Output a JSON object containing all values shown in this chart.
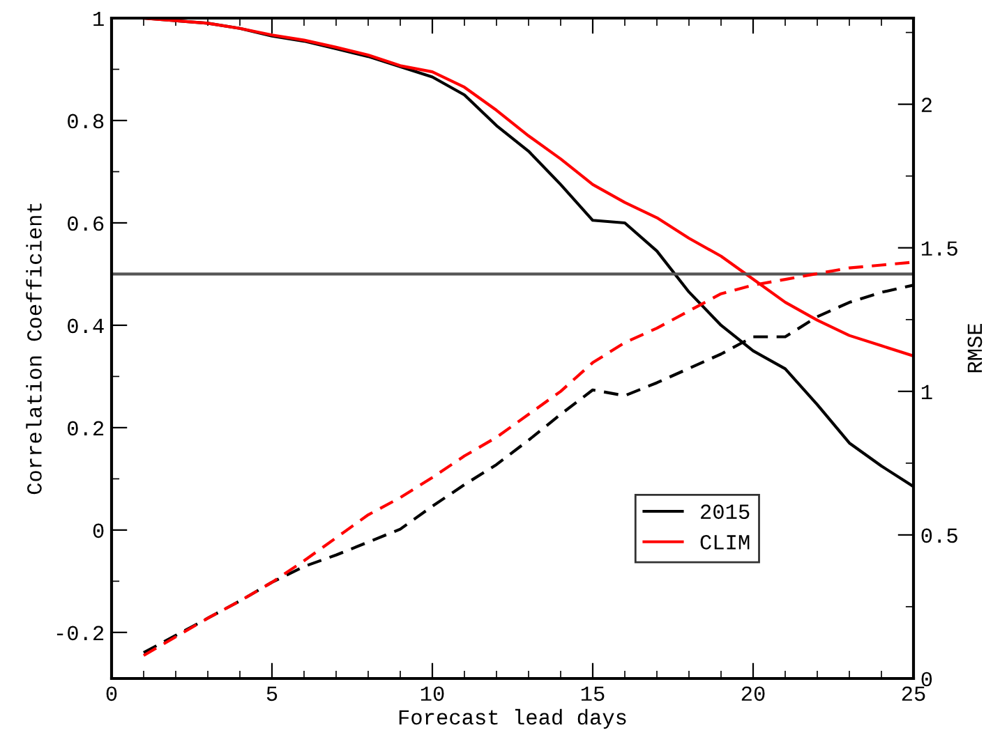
{
  "chart_data": {
    "type": "line",
    "xlabel": "Forecast lead days",
    "ylabel": "Correlation Coefficient",
    "y2label": "RMSE",
    "x": [
      1,
      2,
      3,
      4,
      5,
      6,
      7,
      8,
      9,
      10,
      11,
      12,
      13,
      14,
      15,
      16,
      17,
      18,
      19,
      20,
      21,
      22,
      23,
      24,
      25
    ],
    "series": [
      {
        "name": "2015",
        "color": "#000000",
        "line_style": "solid",
        "values": [
          1.0,
          0.995,
          0.99,
          0.98,
          0.965,
          0.955,
          0.94,
          0.925,
          0.905,
          0.885,
          0.85,
          0.79,
          0.74,
          0.675,
          0.605,
          0.6,
          0.545,
          0.465,
          0.4,
          0.35,
          0.315,
          0.245,
          0.17,
          0.125,
          0.085
        ]
      },
      {
        "name": "CLIM",
        "color": "#ff0000",
        "line_style": "solid",
        "values": [
          1.0,
          0.995,
          0.99,
          0.98,
          0.967,
          0.957,
          0.943,
          0.928,
          0.907,
          0.895,
          0.865,
          0.82,
          0.77,
          0.725,
          0.675,
          0.64,
          0.61,
          0.57,
          0.535,
          0.49,
          0.445,
          0.41,
          0.38,
          0.36,
          0.34
        ]
      },
      {
        "color": "#000000",
        "line_style": "dashed",
        "axis": "y2",
        "values": [
          0.09,
          0.15,
          0.21,
          0.27,
          0.335,
          0.39,
          0.43,
          0.475,
          0.52,
          0.6,
          0.675,
          0.745,
          0.83,
          0.92,
          1.005,
          0.985,
          1.03,
          1.08,
          1.13,
          1.19,
          1.19,
          1.26,
          1.31,
          1.345,
          1.37
        ]
      },
      {
        "color": "#ff0000",
        "line_style": "dashed",
        "axis": "y2",
        "values": [
          0.08,
          0.145,
          0.21,
          0.27,
          0.335,
          0.41,
          0.49,
          0.57,
          0.63,
          0.7,
          0.775,
          0.84,
          0.92,
          1.0,
          1.1,
          1.17,
          1.22,
          1.28,
          1.34,
          1.37,
          1.39,
          1.41,
          1.43,
          1.44,
          1.45
        ]
      }
    ],
    "xlim": [
      0,
      25
    ],
    "xticks": [
      0,
      5,
      10,
      15,
      20,
      25
    ],
    "ylim": [
      -0.29,
      1
    ],
    "yticks": [
      -0.2,
      0,
      0.2,
      0.4,
      0.6,
      0.8,
      1
    ],
    "y2lim": [
      0,
      2.3
    ],
    "y2ticks": [
      0,
      0.5,
      1,
      1.5,
      2
    ],
    "ref_lines": [
      {
        "axis": "y",
        "value": 0.5,
        "color": "#555555"
      }
    ],
    "legend": "bottom right",
    "grid": false
  }
}
